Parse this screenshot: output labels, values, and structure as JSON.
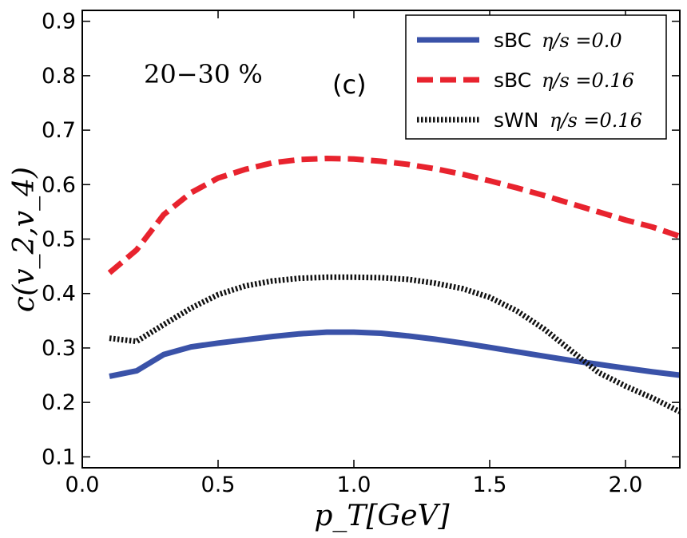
{
  "chart_data": {
    "type": "line",
    "title": "",
    "xlabel": "p_T[GeV]",
    "ylabel": "c(v_2,v_4)",
    "xlim": [
      0.0,
      2.2
    ],
    "ylim": [
      0.08,
      0.92
    ],
    "xticks": [
      "0.0",
      "0.5",
      "1.0",
      "1.5",
      "2.0"
    ],
    "yticks": [
      "0.1",
      "0.2",
      "0.3",
      "0.4",
      "0.5",
      "0.6",
      "0.7",
      "0.8",
      "0.9"
    ],
    "grid": false,
    "legend_position": "top-right",
    "annotations": {
      "centrality": "20−30 %",
      "panel": "(c)"
    },
    "series": [
      {
        "name": "sBC η/s=0.0",
        "label_prefix": "sBC",
        "label_math": "η/s =0.0",
        "color": "#3a52a8",
        "style": "solid",
        "x": [
          0.1,
          0.2,
          0.3,
          0.4,
          0.5,
          0.6,
          0.7,
          0.8,
          0.9,
          1.0,
          1.1,
          1.2,
          1.3,
          1.4,
          1.5,
          1.6,
          1.7,
          1.8,
          1.9,
          2.0,
          2.1,
          2.2
        ],
        "values": [
          0.248,
          0.258,
          0.288,
          0.302,
          0.309,
          0.315,
          0.321,
          0.326,
          0.329,
          0.329,
          0.327,
          0.322,
          0.316,
          0.309,
          0.301,
          0.293,
          0.285,
          0.277,
          0.27,
          0.263,
          0.256,
          0.25
        ]
      },
      {
        "name": "sBC η/s=0.16",
        "label_prefix": "sBC",
        "label_math": "η/s =0.16",
        "color": "#e8232e",
        "style": "dashed",
        "x": [
          0.1,
          0.2,
          0.3,
          0.4,
          0.5,
          0.6,
          0.7,
          0.8,
          0.9,
          1.0,
          1.1,
          1.2,
          1.3,
          1.4,
          1.5,
          1.6,
          1.7,
          1.8,
          1.9,
          2.0,
          2.1,
          2.2
        ],
        "values": [
          0.438,
          0.48,
          0.545,
          0.585,
          0.612,
          0.628,
          0.64,
          0.646,
          0.648,
          0.647,
          0.643,
          0.637,
          0.629,
          0.619,
          0.607,
          0.594,
          0.58,
          0.565,
          0.55,
          0.535,
          0.522,
          0.505
        ]
      },
      {
        "name": "sWN η/s=0.16",
        "label_prefix": "sWN",
        "label_math": "η/s =0.16",
        "color": "#111111",
        "style": "dotted",
        "x": [
          0.1,
          0.2,
          0.3,
          0.4,
          0.5,
          0.6,
          0.7,
          0.8,
          0.9,
          1.0,
          1.1,
          1.2,
          1.3,
          1.4,
          1.5,
          1.6,
          1.7,
          1.8,
          1.9,
          2.0,
          2.1,
          2.2
        ],
        "values": [
          0.318,
          0.312,
          0.343,
          0.373,
          0.398,
          0.414,
          0.423,
          0.428,
          0.43,
          0.43,
          0.429,
          0.426,
          0.419,
          0.409,
          0.393,
          0.368,
          0.335,
          0.295,
          0.255,
          0.23,
          0.208,
          0.183
        ]
      }
    ]
  }
}
